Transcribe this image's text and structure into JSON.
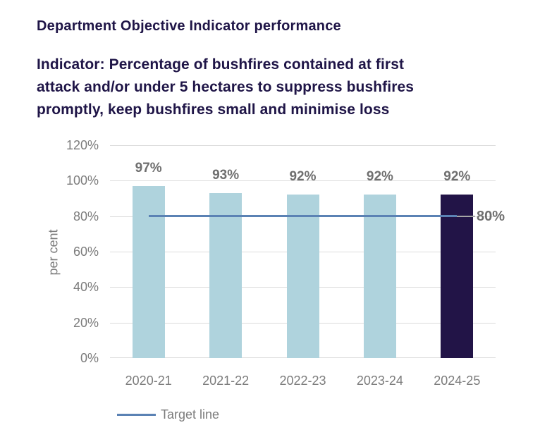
{
  "heading": "Department Objective Indicator performance",
  "subtitle_lines": [
    "Indicator: Percentage of bushfires contained at first",
    "attack and/or under 5 hectares to suppress bushfires",
    "promptly, keep bushfires small and minimise loss"
  ],
  "colors": {
    "heading_navy": "#1f1547",
    "bar_light_blue": "#afd3dd",
    "bar_dark_navy": "#221447",
    "target_line_blue": "#5b82b4",
    "leader_gray": "#a6a6a6",
    "axis_gray": "#7c7c7c",
    "data_label_gray": "#6f6f6f",
    "gridline_gray": "#dbdbdb"
  },
  "chart_data": {
    "type": "bar",
    "title": "Department Objective Indicator performance",
    "categories": [
      "2020-21",
      "2021-22",
      "2022-23",
      "2023-24",
      "2024-25"
    ],
    "values": [
      97,
      93,
      92,
      92,
      92
    ],
    "data_labels": [
      "97%",
      "93%",
      "92%",
      "92%",
      "92%"
    ],
    "highlight_index": 4,
    "ylabel": "per cent",
    "xlabel": "",
    "ylim": [
      0,
      120
    ],
    "yticks": [
      0,
      20,
      40,
      60,
      80,
      100,
      120
    ],
    "ytick_labels": [
      "0%",
      "20%",
      "40%",
      "60%",
      "80%",
      "100%",
      "120%"
    ],
    "grid": true,
    "target_line": {
      "value": 80,
      "label": "80%",
      "legend": "Target line"
    },
    "legend_position": "bottom-left"
  }
}
